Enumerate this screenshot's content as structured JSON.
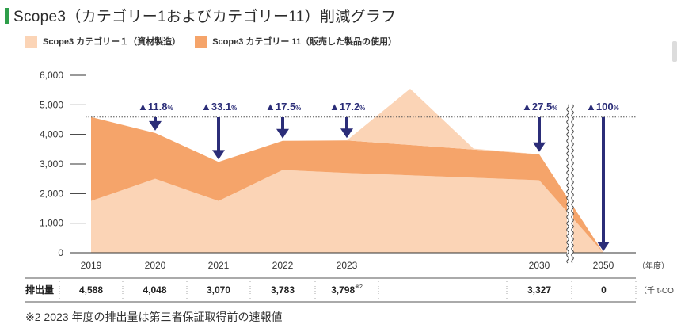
{
  "page": {
    "title": "Scope3（カテゴリー1およびカテゴリー11）削減グラフ",
    "footnote": "※2 2023 年度の排出量は第三者保証取得前の速報値"
  },
  "legend": [
    {
      "label": "Scope3 カテゴリー１（資材製造）",
      "color": "#fbd4b6"
    },
    {
      "label": "Scope3 カテゴリー 11（販売した製品の使用）",
      "color": "#f5a46a"
    }
  ],
  "chart_data": {
    "type": "area",
    "categories": [
      "2019",
      "2020",
      "2021",
      "2022",
      "2023",
      "2030",
      "2050"
    ],
    "series": [
      {
        "name": "Scope3 カテゴリー１（資材製造）",
        "values": [
          1750,
          2500,
          1750,
          2800,
          2700,
          2450,
          0
        ]
      },
      {
        "name": "Scope3 カテゴリー 11（販売した製品の使用）",
        "values": [
          2838,
          1548,
          1320,
          983,
          1098,
          877,
          0
        ]
      }
    ],
    "totals": [
      4588,
      4048,
      3070,
      3783,
      3798,
      3327,
      0
    ],
    "reduction_labels": [
      {
        "year": "2020",
        "value": "▲11.8",
        "unit": "%"
      },
      {
        "year": "2021",
        "value": "▲33.1",
        "unit": "%"
      },
      {
        "year": "2022",
        "value": "▲17.5",
        "unit": "%"
      },
      {
        "year": "2023",
        "value": "▲17.2",
        "unit": "%"
      },
      {
        "year": "2030",
        "value": "▲27.5",
        "unit": "%"
      },
      {
        "year": "2050",
        "value": "▲100",
        "unit": "%"
      }
    ],
    "ylim": [
      0,
      6000
    ],
    "yticks": [
      "6,000",
      "5,000",
      "4,000",
      "3,000",
      "2,000",
      "1,000",
      "0"
    ],
    "yticks_values": [
      6000,
      5000,
      4000,
      3000,
      2000,
      1000,
      0
    ],
    "x_unit": "（年度）",
    "baseline_value": 4588,
    "axis_break_between": [
      "2030",
      "2050"
    ]
  },
  "emissions_row": {
    "label": "排出量",
    "values": [
      "4,588",
      "4,048",
      "3,070",
      "3,783",
      "3,798",
      "",
      "3,327",
      "0"
    ],
    "footnote_mark": "※2",
    "unit": "（千 t-CO"
  },
  "colors": {
    "cat1": "#fbd4b6",
    "cat11": "#f5a46a",
    "arrow": "#2b2d78",
    "accent_bar": "#2e9e4a"
  }
}
